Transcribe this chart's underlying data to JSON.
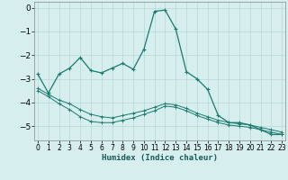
{
  "xlabel": "Humidex (Indice chaleur)",
  "ylabel": "",
  "background_color": "#d6eeee",
  "grid_color": "#b8d8d8",
  "line_color": "#1a7a6e",
  "x_ticks": [
    0,
    1,
    2,
    3,
    4,
    5,
    6,
    7,
    8,
    9,
    10,
    11,
    12,
    13,
    14,
    15,
    16,
    17,
    18,
    19,
    20,
    21,
    22,
    23
  ],
  "y_ticks": [
    0,
    -1,
    -2,
    -3,
    -4,
    -5
  ],
  "ylim": [
    -5.6,
    0.25
  ],
  "xlim": [
    -0.3,
    23.3
  ],
  "series1_x": [
    0,
    1,
    2,
    3,
    4,
    5,
    6,
    7,
    8,
    9,
    10,
    11,
    12,
    13,
    14,
    15,
    16,
    17,
    18,
    19,
    20,
    21,
    22,
    23
  ],
  "series1_y": [
    -2.8,
    -3.6,
    -2.8,
    -2.55,
    -2.1,
    -2.65,
    -2.75,
    -2.55,
    -2.35,
    -2.6,
    -1.75,
    -0.15,
    -0.1,
    -0.9,
    -2.7,
    -3.0,
    -3.45,
    -4.55,
    -4.85,
    -4.85,
    -4.95,
    -5.15,
    -5.35,
    -5.35
  ],
  "series2_x": [
    0,
    1,
    2,
    3,
    4,
    5,
    6,
    7,
    8,
    9,
    10,
    11,
    12,
    13,
    14,
    15,
    16,
    17,
    18,
    19,
    20,
    21,
    22,
    23
  ],
  "series2_y": [
    -3.4,
    -3.65,
    -3.9,
    -4.05,
    -4.3,
    -4.5,
    -4.6,
    -4.65,
    -4.55,
    -4.45,
    -4.35,
    -4.2,
    -4.05,
    -4.1,
    -4.25,
    -4.45,
    -4.6,
    -4.75,
    -4.85,
    -4.9,
    -4.95,
    -5.05,
    -5.15,
    -5.25
  ],
  "series3_x": [
    0,
    1,
    2,
    3,
    4,
    5,
    6,
    7,
    8,
    9,
    10,
    11,
    12,
    13,
    14,
    15,
    16,
    17,
    18,
    19,
    20,
    21,
    22,
    23
  ],
  "series3_y": [
    -3.5,
    -3.75,
    -4.05,
    -4.3,
    -4.6,
    -4.8,
    -4.85,
    -4.85,
    -4.75,
    -4.65,
    -4.5,
    -4.35,
    -4.15,
    -4.2,
    -4.35,
    -4.55,
    -4.7,
    -4.85,
    -4.95,
    -5.0,
    -5.05,
    -5.15,
    -5.25,
    -5.35
  ]
}
